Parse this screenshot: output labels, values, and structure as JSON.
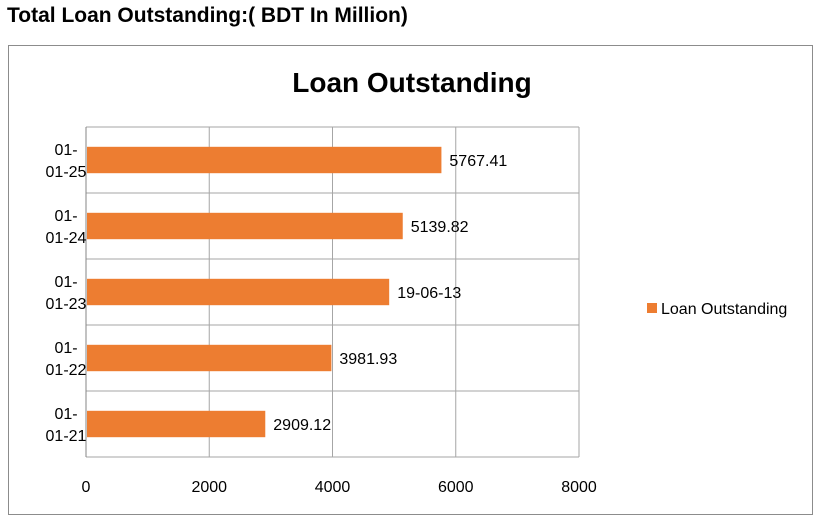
{
  "page": {
    "heading": "Total Loan Outstanding:( BDT In Million)"
  },
  "chart_data": {
    "type": "bar",
    "orientation": "horizontal",
    "title": "Loan Outstanding",
    "categories": [
      [
        "01-",
        "01-25"
      ],
      [
        "01-",
        "01-24"
      ],
      [
        "01-",
        "01-23"
      ],
      [
        "01-",
        "01-22"
      ],
      [
        "01-",
        "01-21"
      ]
    ],
    "series": [
      {
        "name": "Loan Outstanding",
        "color": "#ED7D31",
        "values": [
          5767.41,
          5139.82,
          4920,
          3981.93,
          2909.12
        ],
        "data_labels": [
          "5767.41",
          "5139.82",
          "19-06-13",
          "3981.93",
          "2909.12"
        ]
      }
    ],
    "xlim": [
      0,
      8000
    ],
    "xticks": [
      "0",
      "2000",
      "4000",
      "6000",
      "8000"
    ],
    "xtick_values": [
      0,
      2000,
      4000,
      6000,
      8000
    ],
    "grid": true,
    "legend_position": "right"
  }
}
